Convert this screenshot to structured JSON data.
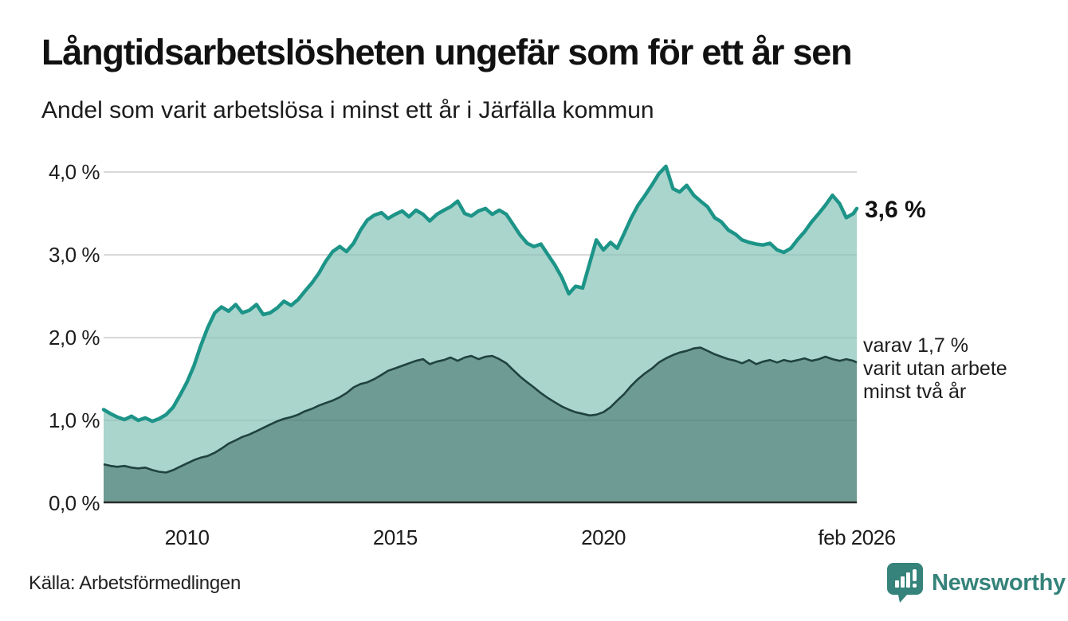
{
  "header": {
    "title": "Långtidsarbetslösheten ungefär som för ett år sen",
    "subtitle": "Andel som varit arbetslösa i minst ett år i Järfälla kommun"
  },
  "annotations": {
    "end_value": "3,6 %",
    "secondary": [
      "varav 1,7 %",
      "varit utan arbete",
      "minst två år"
    ]
  },
  "footer": {
    "source": "Källa: Arbetsförmedlingen",
    "brand": "Newsworthy"
  },
  "colors": {
    "line_primary": "#1d9488",
    "fill_primary": "#a9d5cd",
    "line_secondary": "#20433f",
    "fill_secondary": "#6e9b93",
    "grid": "#e4e4e4",
    "axis": "#2a2a2a",
    "brand_teal": "#35837a"
  },
  "chart_data": {
    "type": "area",
    "title": "Andel som varit arbetslösa i minst ett år i Järfälla kommun",
    "unit": "%",
    "xlim": [
      2008.0,
      2026.083
    ],
    "ylim": [
      0,
      4.3
    ],
    "grid": true,
    "y_ticks": [
      {
        "value": 0,
        "label": "0,0 %"
      },
      {
        "value": 1,
        "label": "1,0 %"
      },
      {
        "value": 2,
        "label": "2,0 %"
      },
      {
        "value": 3,
        "label": "3,0 %"
      },
      {
        "value": 4,
        "label": "4,0 %"
      }
    ],
    "x_ticks": [
      {
        "value": 2010.0,
        "label": "2010"
      },
      {
        "value": 2015.0,
        "label": "2015"
      },
      {
        "value": 2020.0,
        "label": "2020"
      },
      {
        "value": 2026.083,
        "label": "feb 2026"
      }
    ],
    "series": [
      {
        "name": "Arbetslösa minst ett år",
        "end_value": 3.6,
        "end_label": "3,6 %"
      },
      {
        "name": "Arbetslösa minst två år",
        "end_value": 1.7,
        "end_label": "varav 1,7 % varit utan arbete minst två år"
      }
    ],
    "points": [
      [
        2008.0,
        1.13,
        0.47
      ],
      [
        2008.17,
        1.08,
        0.45
      ],
      [
        2008.33,
        1.04,
        0.44
      ],
      [
        2008.5,
        1.01,
        0.45
      ],
      [
        2008.67,
        1.05,
        0.43
      ],
      [
        2008.83,
        1.0,
        0.42
      ],
      [
        2009.0,
        1.03,
        0.43
      ],
      [
        2009.17,
        0.99,
        0.4
      ],
      [
        2009.33,
        1.02,
        0.38
      ],
      [
        2009.5,
        1.07,
        0.37
      ],
      [
        2009.67,
        1.16,
        0.4
      ],
      [
        2009.83,
        1.3,
        0.44
      ],
      [
        2010.0,
        1.46,
        0.48
      ],
      [
        2010.17,
        1.66,
        0.52
      ],
      [
        2010.33,
        1.9,
        0.55
      ],
      [
        2010.5,
        2.12,
        0.57
      ],
      [
        2010.67,
        2.3,
        0.61
      ],
      [
        2010.83,
        2.37,
        0.66
      ],
      [
        2011.0,
        2.32,
        0.72
      ],
      [
        2011.17,
        2.4,
        0.76
      ],
      [
        2011.33,
        2.3,
        0.8
      ],
      [
        2011.5,
        2.33,
        0.83
      ],
      [
        2011.67,
        2.4,
        0.87
      ],
      [
        2011.83,
        2.28,
        0.91
      ],
      [
        2012.0,
        2.3,
        0.95
      ],
      [
        2012.17,
        2.36,
        0.99
      ],
      [
        2012.33,
        2.44,
        1.02
      ],
      [
        2012.5,
        2.39,
        1.04
      ],
      [
        2012.67,
        2.46,
        1.07
      ],
      [
        2012.83,
        2.56,
        1.11
      ],
      [
        2013.0,
        2.66,
        1.14
      ],
      [
        2013.17,
        2.78,
        1.18
      ],
      [
        2013.33,
        2.92,
        1.21
      ],
      [
        2013.5,
        3.04,
        1.24
      ],
      [
        2013.67,
        3.1,
        1.28
      ],
      [
        2013.83,
        3.04,
        1.33
      ],
      [
        2014.0,
        3.14,
        1.4
      ],
      [
        2014.17,
        3.3,
        1.44
      ],
      [
        2014.33,
        3.42,
        1.46
      ],
      [
        2014.5,
        3.48,
        1.5
      ],
      [
        2014.67,
        3.51,
        1.55
      ],
      [
        2014.83,
        3.44,
        1.6
      ],
      [
        2015.0,
        3.49,
        1.63
      ],
      [
        2015.17,
        3.53,
        1.66
      ],
      [
        2015.33,
        3.46,
        1.69
      ],
      [
        2015.5,
        3.54,
        1.72
      ],
      [
        2015.67,
        3.49,
        1.74
      ],
      [
        2015.83,
        3.41,
        1.68
      ],
      [
        2016.0,
        3.49,
        1.71
      ],
      [
        2016.17,
        3.54,
        1.73
      ],
      [
        2016.33,
        3.58,
        1.76
      ],
      [
        2016.5,
        3.65,
        1.72
      ],
      [
        2016.67,
        3.5,
        1.76
      ],
      [
        2016.83,
        3.47,
        1.78
      ],
      [
        2017.0,
        3.53,
        1.74
      ],
      [
        2017.17,
        3.56,
        1.77
      ],
      [
        2017.33,
        3.49,
        1.78
      ],
      [
        2017.5,
        3.54,
        1.74
      ],
      [
        2017.67,
        3.49,
        1.69
      ],
      [
        2017.83,
        3.37,
        1.61
      ],
      [
        2018.0,
        3.24,
        1.53
      ],
      [
        2018.17,
        3.14,
        1.46
      ],
      [
        2018.33,
        3.1,
        1.4
      ],
      [
        2018.5,
        3.13,
        1.33
      ],
      [
        2018.67,
        3.0,
        1.27
      ],
      [
        2018.83,
        2.88,
        1.22
      ],
      [
        2019.0,
        2.73,
        1.17
      ],
      [
        2019.17,
        2.53,
        1.13
      ],
      [
        2019.33,
        2.62,
        1.1
      ],
      [
        2019.5,
        2.6,
        1.08
      ],
      [
        2019.67,
        2.9,
        1.06
      ],
      [
        2019.83,
        3.18,
        1.07
      ],
      [
        2020.0,
        3.06,
        1.1
      ],
      [
        2020.17,
        3.15,
        1.16
      ],
      [
        2020.33,
        3.08,
        1.24
      ],
      [
        2020.5,
        3.26,
        1.32
      ],
      [
        2020.67,
        3.45,
        1.42
      ],
      [
        2020.83,
        3.6,
        1.5
      ],
      [
        2021.0,
        3.72,
        1.57
      ],
      [
        2021.17,
        3.85,
        1.63
      ],
      [
        2021.33,
        3.98,
        1.7
      ],
      [
        2021.5,
        4.07,
        1.75
      ],
      [
        2021.67,
        3.8,
        1.79
      ],
      [
        2021.83,
        3.76,
        1.82
      ],
      [
        2022.0,
        3.84,
        1.84
      ],
      [
        2022.17,
        3.72,
        1.87
      ],
      [
        2022.33,
        3.65,
        1.88
      ],
      [
        2022.5,
        3.58,
        1.84
      ],
      [
        2022.67,
        3.45,
        1.8
      ],
      [
        2022.83,
        3.4,
        1.77
      ],
      [
        2023.0,
        3.3,
        1.74
      ],
      [
        2023.17,
        3.25,
        1.72
      ],
      [
        2023.33,
        3.18,
        1.69
      ],
      [
        2023.5,
        3.15,
        1.73
      ],
      [
        2023.67,
        3.13,
        1.68
      ],
      [
        2023.83,
        3.12,
        1.71
      ],
      [
        2024.0,
        3.14,
        1.73
      ],
      [
        2024.17,
        3.06,
        1.7
      ],
      [
        2024.33,
        3.03,
        1.73
      ],
      [
        2024.5,
        3.08,
        1.71
      ],
      [
        2024.67,
        3.19,
        1.73
      ],
      [
        2024.83,
        3.28,
        1.75
      ],
      [
        2025.0,
        3.4,
        1.72
      ],
      [
        2025.17,
        3.5,
        1.74
      ],
      [
        2025.33,
        3.6,
        1.77
      ],
      [
        2025.5,
        3.72,
        1.74
      ],
      [
        2025.67,
        3.62,
        1.72
      ],
      [
        2025.83,
        3.45,
        1.74
      ],
      [
        2026.0,
        3.5,
        1.72
      ],
      [
        2026.083,
        3.56,
        1.7
      ]
    ]
  }
}
